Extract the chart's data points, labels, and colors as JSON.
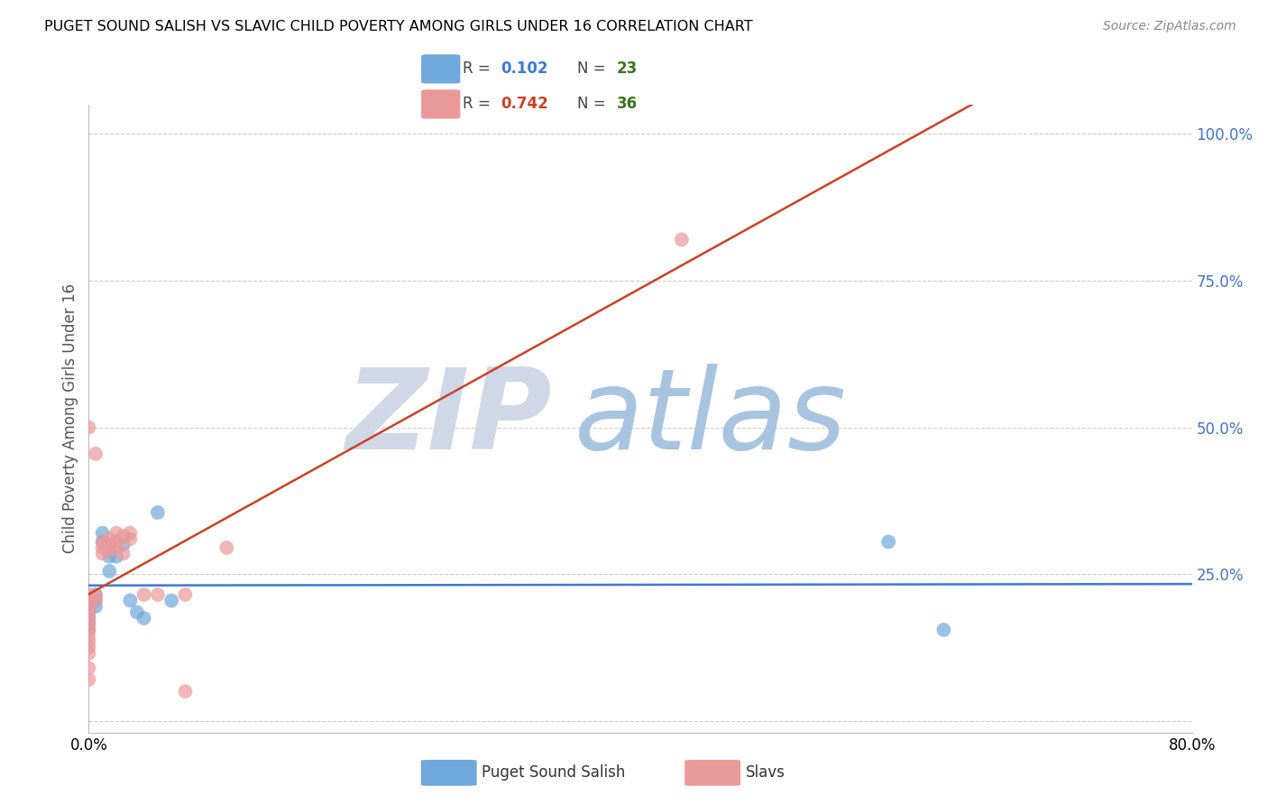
{
  "title": "PUGET SOUND SALISH VS SLAVIC CHILD POVERTY AMONG GIRLS UNDER 16 CORRELATION CHART",
  "source": "Source: ZipAtlas.com",
  "ylabel": "Child Poverty Among Girls Under 16",
  "xlim": [
    0.0,
    0.8
  ],
  "ylim": [
    -0.02,
    1.05
  ],
  "salish_R": 0.102,
  "salish_N": 23,
  "slavic_R": 0.742,
  "slavic_N": 36,
  "salish_color": "#6fa8dc",
  "slavic_color": "#ea9999",
  "salish_line_color": "#3c78d8",
  "slavic_line_color": "#cc4125",
  "watermark_zip": "ZIP",
  "watermark_atlas": "atlas",
  "watermark_color_zip": "#d0d8e8",
  "watermark_color_atlas": "#a8c4e0",
  "salish_points": [
    [
      0.0,
      0.205
    ],
    [
      0.0,
      0.195
    ],
    [
      0.0,
      0.185
    ],
    [
      0.0,
      0.175
    ],
    [
      0.0,
      0.165
    ],
    [
      0.0,
      0.155
    ],
    [
      0.005,
      0.215
    ],
    [
      0.005,
      0.205
    ],
    [
      0.005,
      0.195
    ],
    [
      0.01,
      0.32
    ],
    [
      0.01,
      0.305
    ],
    [
      0.015,
      0.29
    ],
    [
      0.015,
      0.28
    ],
    [
      0.015,
      0.255
    ],
    [
      0.02,
      0.28
    ],
    [
      0.025,
      0.3
    ],
    [
      0.03,
      0.205
    ],
    [
      0.035,
      0.185
    ],
    [
      0.04,
      0.175
    ],
    [
      0.05,
      0.355
    ],
    [
      0.06,
      0.205
    ],
    [
      0.58,
      0.305
    ],
    [
      0.62,
      0.155
    ]
  ],
  "slavic_points": [
    [
      0.0,
      0.5
    ],
    [
      0.0,
      0.215
    ],
    [
      0.0,
      0.205
    ],
    [
      0.0,
      0.195
    ],
    [
      0.0,
      0.185
    ],
    [
      0.0,
      0.175
    ],
    [
      0.0,
      0.165
    ],
    [
      0.0,
      0.155
    ],
    [
      0.0,
      0.145
    ],
    [
      0.0,
      0.135
    ],
    [
      0.0,
      0.125
    ],
    [
      0.0,
      0.115
    ],
    [
      0.0,
      0.09
    ],
    [
      0.0,
      0.07
    ],
    [
      0.005,
      0.455
    ],
    [
      0.005,
      0.215
    ],
    [
      0.005,
      0.205
    ],
    [
      0.01,
      0.305
    ],
    [
      0.01,
      0.295
    ],
    [
      0.01,
      0.285
    ],
    [
      0.015,
      0.31
    ],
    [
      0.015,
      0.3
    ],
    [
      0.015,
      0.29
    ],
    [
      0.02,
      0.32
    ],
    [
      0.02,
      0.305
    ],
    [
      0.02,
      0.295
    ],
    [
      0.025,
      0.315
    ],
    [
      0.025,
      0.285
    ],
    [
      0.03,
      0.32
    ],
    [
      0.03,
      0.31
    ],
    [
      0.04,
      0.215
    ],
    [
      0.05,
      0.215
    ],
    [
      0.07,
      0.215
    ],
    [
      0.43,
      0.82
    ],
    [
      0.07,
      0.05
    ],
    [
      0.1,
      0.295
    ]
  ],
  "background_color": "#ffffff",
  "grid_color": "#cccccc",
  "title_color": "#000000",
  "axis_label_color": "#555555",
  "tick_color_right": "#4472c4",
  "legend_R_color_salish": "#3c78d8",
  "legend_N_color_salish": "#38761d",
  "legend_R_color_slavic": "#cc4125",
  "legend_N_color_slavic": "#38761d"
}
